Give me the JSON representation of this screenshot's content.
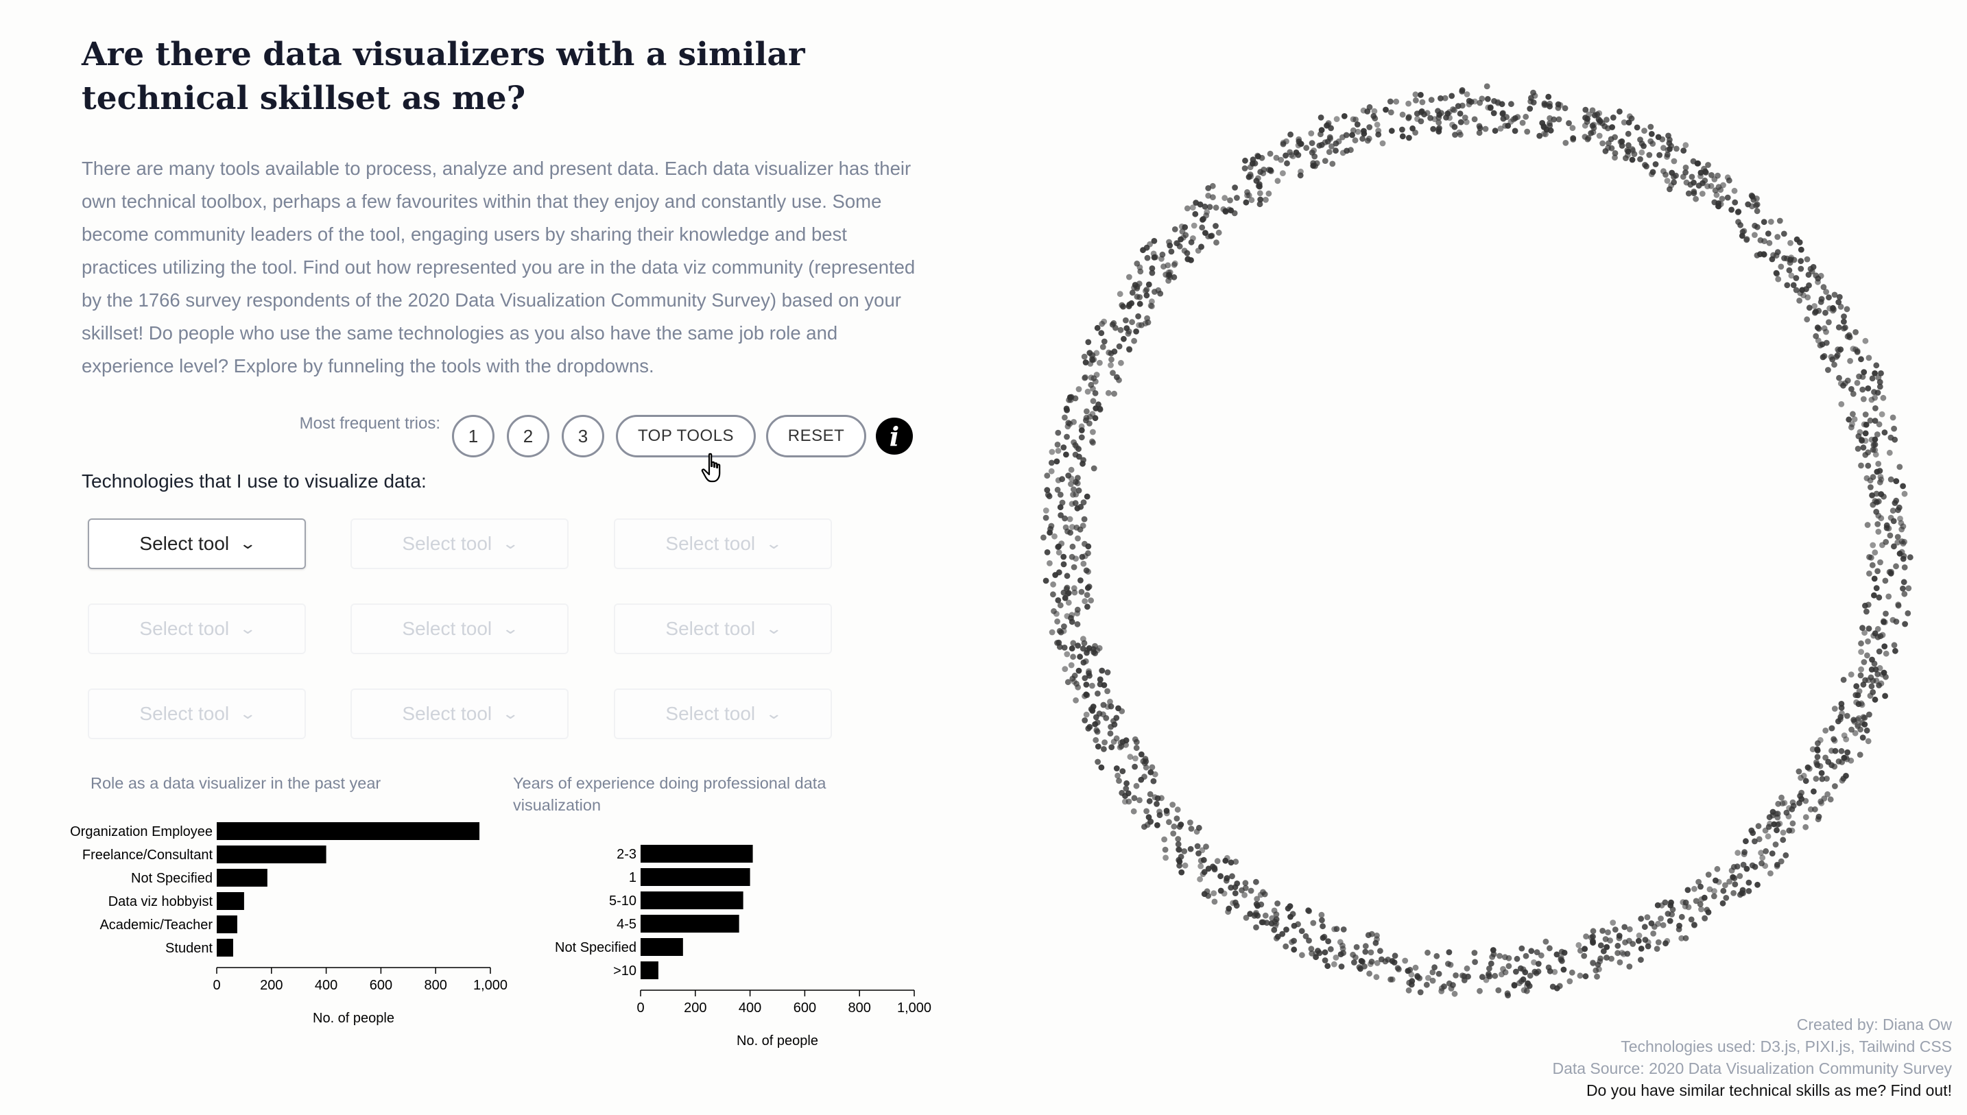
{
  "header": {
    "title": "Are there data visualizers with a similar technical skillset as me?",
    "intro": "There are many tools available to process, analyze and present data. Each data visualizer has their own technical toolbox, perhaps a few favourites within that they enjoy and constantly use. Some become community leaders of the tool, engaging users by sharing their knowledge and best practices utilizing the tool. Find out how represented you are in the data viz community (represented by the 1766 survey respondents of the 2020 Data Visualization Community Survey) based on your skillset! Do people who use the same technologies as you also have the same job role and experience level? Explore by funneling the tools with the dropdowns."
  },
  "controls": {
    "trios_label": "Most frequent trios:",
    "trio_buttons": [
      "1",
      "2",
      "3"
    ],
    "top_tools_label": "TOP TOOLS",
    "reset_label": "RESET",
    "info_icon": "info-icon"
  },
  "technologies": {
    "label": "Technologies that I use to visualize data:",
    "selects": [
      {
        "label": "Select tool",
        "enabled": true
      },
      {
        "label": "Select tool",
        "enabled": false
      },
      {
        "label": "Select tool",
        "enabled": false
      },
      {
        "label": "Select tool",
        "enabled": false
      },
      {
        "label": "Select tool",
        "enabled": false
      },
      {
        "label": "Select tool",
        "enabled": false
      },
      {
        "label": "Select tool",
        "enabled": false
      },
      {
        "label": "Select tool",
        "enabled": false
      },
      {
        "label": "Select tool",
        "enabled": false
      }
    ]
  },
  "chart_data": [
    {
      "type": "bar",
      "orientation": "horizontal",
      "title": "Role as a data visualizer in the past year",
      "categories": [
        "Organization Employee",
        "Freelance/Consultant",
        "Not Specified",
        "Data viz hobbyist",
        "Academic/Teacher",
        "Student"
      ],
      "values": [
        960,
        400,
        185,
        100,
        75,
        60
      ],
      "xlabel": "No. of people",
      "xlim": [
        0,
        1000
      ],
      "xticks": [
        "0",
        "200",
        "400",
        "600",
        "800",
        "1,000"
      ],
      "color": "#000000"
    },
    {
      "type": "bar",
      "orientation": "horizontal",
      "title": "Years of experience doing professional data visualization",
      "categories": [
        "2-3",
        "1",
        "5-10",
        "4-5",
        "Not Specified",
        ">10"
      ],
      "values": [
        410,
        400,
        375,
        360,
        155,
        65
      ],
      "xlabel": "No. of people",
      "xlim": [
        0,
        1000
      ],
      "xticks": [
        "0",
        "200",
        "400",
        "600",
        "800",
        "1,000"
      ],
      "color": "#000000"
    }
  ],
  "visualization": {
    "type": "scatter-ring",
    "respondents": 1766,
    "point_color": "#333333"
  },
  "footer": {
    "created_by": "Created by: Diana Ow",
    "technologies": "Technologies used: D3.js, PIXI.js, Tailwind CSS",
    "source": "Data Source: 2020 Data Visualization Community Survey",
    "tagline": "Do you have similar technical skills as me? Find out!"
  }
}
